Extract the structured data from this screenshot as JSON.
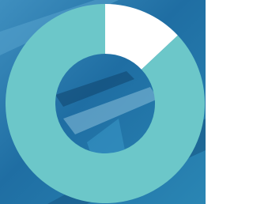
{
  "chart_data": {
    "type": "donut",
    "values": [
      13,
      87
    ],
    "colors": [
      "#ffffff",
      "#6cc7c9"
    ]
  }
}
